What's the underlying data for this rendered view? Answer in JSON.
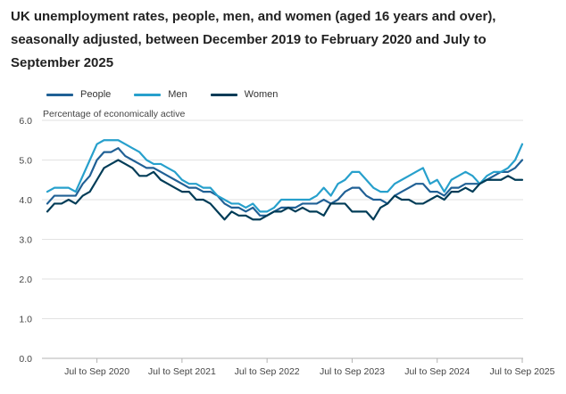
{
  "chart_data": {
    "type": "line",
    "title": "UK unemployment rates, people, men, and women (aged 16 years and over), seasonally adjusted, between December 2019 to February 2020 and July to September 2025",
    "ylabel": "Percentage of economically active",
    "xlabel": "",
    "ylim": [
      0,
      6
    ],
    "yticks": [
      "0.0",
      "1.0",
      "2.0",
      "3.0",
      "4.0",
      "5.0",
      "6.0"
    ],
    "yticks_values": [
      0,
      1,
      2,
      3,
      4,
      5,
      6
    ],
    "grid": true,
    "legend_position": "top-left",
    "x": [
      "Dec to Feb 2020",
      "Jan to Mar 2020",
      "Feb to Apr 2020",
      "Mar to May 2020",
      "Apr to Jun 2020",
      "May to Jul 2020",
      "Jun to Aug 2020",
      "Jul to Sep 2020",
      "Aug to Oct 2020",
      "Sep to Nov 2020",
      "Oct to Dec 2020",
      "Nov to Jan 2021",
      "Dec to Feb 2021",
      "Jan to Mar 2021",
      "Feb to Apr 2021",
      "Mar to May 2021",
      "Apr to Jun 2021",
      "May to Jul 2021",
      "Jun to Aug 2021",
      "Jul to Sep 2021",
      "Aug to Oct 2021",
      "Sep to Nov 2021",
      "Oct to Dec 2021",
      "Nov to Jan 2022",
      "Dec to Feb 2022",
      "Jan to Mar 2022",
      "Feb to Apr 2022",
      "Mar to May 2022",
      "Apr to Jun 2022",
      "May to Jul 2022",
      "Jun to Aug 2022",
      "Jul to Sep 2022",
      "Aug to Oct 2022",
      "Sep to Nov 2022",
      "Oct to Dec 2022",
      "Nov to Jan 2023",
      "Dec to Feb 2023",
      "Jan to Mar 2023",
      "Feb to Apr 2023",
      "Mar to May 2023",
      "Apr to Jun 2023",
      "May to Jul 2023",
      "Jun to Aug 2023",
      "Jul to Sep 2023",
      "Aug to Oct 2023",
      "Sep to Nov 2023",
      "Oct to Dec 2023",
      "Nov to Jan 2024",
      "Dec to Feb 2024",
      "Jan to Mar 2024",
      "Feb to Apr 2024",
      "Mar to May 2024",
      "Apr to Jun 2024",
      "May to Jul 2024",
      "Jun to Aug 2024",
      "Jul to Sep 2024",
      "Aug to Oct 2024",
      "Sep to Nov 2024",
      "Oct to Dec 2024",
      "Nov to Jan 2025",
      "Dec to Feb 2025",
      "Jan to Mar 2025",
      "Feb to Apr 2025",
      "Mar to May 2025",
      "Apr to Jun 2025",
      "May to Jul 2025",
      "Jun to Aug 2025",
      "Jul to Sep 2025"
    ],
    "xtick_labels": [
      "Jul to Sep 2020",
      "Jul to Sept 2021",
      "Jul to Sep 2022",
      "Jul to Sep 2023",
      "Jul to Sep 2024",
      "Jul to Sep 2025"
    ],
    "xtick_indices": [
      7,
      19,
      31,
      43,
      55,
      67
    ],
    "series": [
      {
        "name": "People",
        "color": "#206095",
        "values": [
          3.9,
          4.1,
          4.1,
          4.1,
          4.1,
          4.4,
          4.6,
          5.0,
          5.2,
          5.2,
          5.3,
          5.1,
          5.0,
          4.9,
          4.8,
          4.8,
          4.7,
          4.6,
          4.5,
          4.4,
          4.3,
          4.3,
          4.2,
          4.2,
          4.1,
          3.9,
          3.8,
          3.8,
          3.7,
          3.8,
          3.6,
          3.6,
          3.7,
          3.8,
          3.8,
          3.8,
          3.9,
          3.9,
          3.9,
          4.0,
          3.9,
          4.0,
          4.2,
          4.3,
          4.3,
          4.1,
          4.0,
          4.0,
          3.9,
          4.1,
          4.2,
          4.3,
          4.4,
          4.4,
          4.2,
          4.2,
          4.1,
          4.3,
          4.3,
          4.4,
          4.4,
          4.4,
          4.5,
          4.6,
          4.7,
          4.7,
          4.8,
          5.0
        ]
      },
      {
        "name": "Men",
        "color": "#27a0cc",
        "values": [
          4.2,
          4.3,
          4.3,
          4.3,
          4.2,
          4.6,
          5.0,
          5.4,
          5.5,
          5.5,
          5.5,
          5.4,
          5.3,
          5.2,
          5.0,
          4.9,
          4.9,
          4.8,
          4.7,
          4.5,
          4.4,
          4.4,
          4.3,
          4.3,
          4.1,
          4.0,
          3.9,
          3.9,
          3.8,
          3.9,
          3.7,
          3.7,
          3.8,
          4.0,
          4.0,
          4.0,
          4.0,
          4.0,
          4.1,
          4.3,
          4.1,
          4.4,
          4.5,
          4.7,
          4.7,
          4.5,
          4.3,
          4.2,
          4.2,
          4.4,
          4.5,
          4.6,
          4.7,
          4.8,
          4.4,
          4.5,
          4.2,
          4.5,
          4.6,
          4.7,
          4.6,
          4.4,
          4.6,
          4.7,
          4.7,
          4.8,
          5.0,
          5.4
        ]
      },
      {
        "name": "Women",
        "color": "#003c57",
        "values": [
          3.7,
          3.9,
          3.9,
          4.0,
          3.9,
          4.1,
          4.2,
          4.5,
          4.8,
          4.9,
          5.0,
          4.9,
          4.8,
          4.6,
          4.6,
          4.7,
          4.5,
          4.4,
          4.3,
          4.2,
          4.2,
          4.0,
          4.0,
          3.9,
          3.7,
          3.5,
          3.7,
          3.6,
          3.6,
          3.5,
          3.5,
          3.6,
          3.7,
          3.7,
          3.8,
          3.7,
          3.8,
          3.7,
          3.7,
          3.6,
          3.9,
          3.9,
          3.9,
          3.7,
          3.7,
          3.7,
          3.5,
          3.8,
          3.9,
          4.1,
          4.0,
          4.0,
          3.9,
          3.9,
          4.0,
          4.1,
          4.0,
          4.2,
          4.2,
          4.3,
          4.2,
          4.4,
          4.5,
          4.5,
          4.5,
          4.6,
          4.5,
          4.5
        ]
      }
    ]
  }
}
